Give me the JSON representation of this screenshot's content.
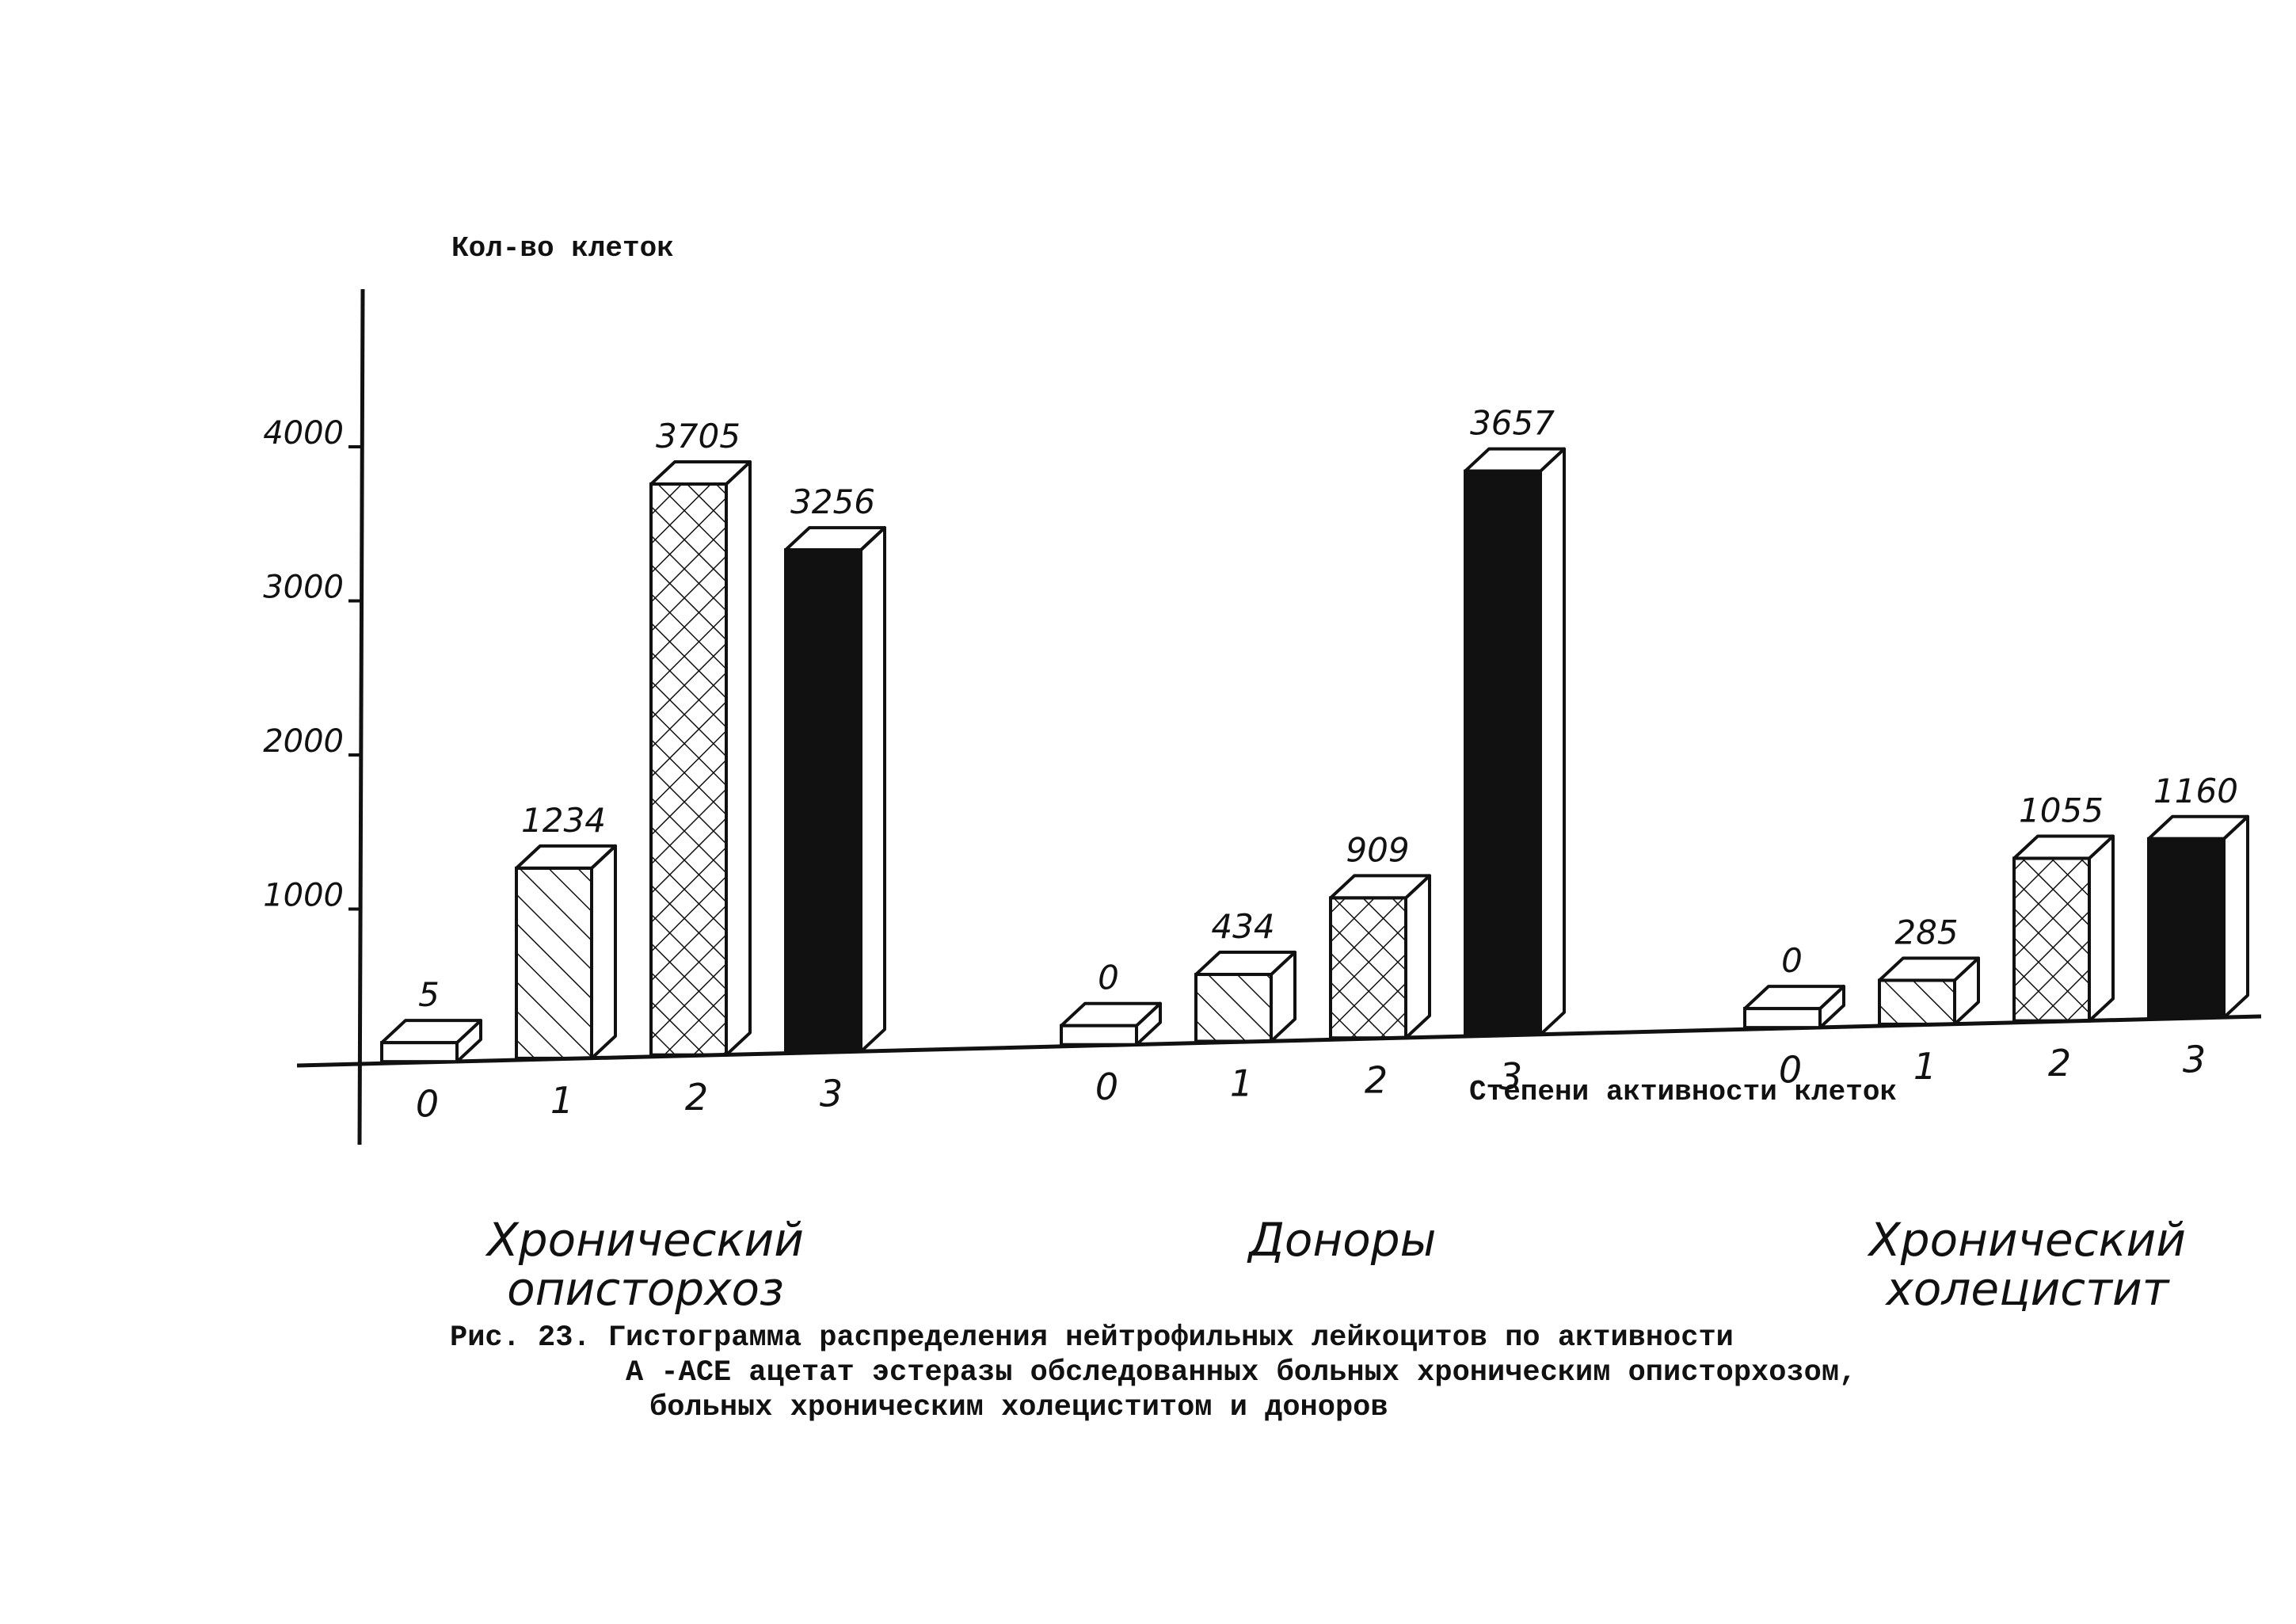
{
  "chart_data": {
    "type": "bar",
    "ylabel": "Кол-во клеток",
    "xlabel": "Степени активности клеток",
    "yticks": [
      1000,
      2000,
      3000,
      4000
    ],
    "ytick_labels": [
      "1000",
      "2000",
      "3000",
      "4000"
    ],
    "ylim": [
      0,
      5000
    ],
    "grid": false,
    "categories": [
      "0",
      "1",
      "2",
      "3"
    ],
    "groups": [
      {
        "name": "Хронический описторхоз",
        "name_lines": [
          "Хронический",
          "описторхоз"
        ],
        "values": [
          5,
          1234,
          3705,
          3256
        ],
        "value_labels": [
          "5",
          "1234",
          "3705",
          "3256"
        ]
      },
      {
        "name": "Доноры",
        "name_lines": [
          "Доноры"
        ],
        "values": [
          0,
          434,
          909,
          3657
        ],
        "value_labels": [
          "0",
          "434",
          "909",
          "3657"
        ]
      },
      {
        "name": "Хронический холецистит",
        "name_lines": [
          "Хронический",
          "холецистит"
        ],
        "values": [
          0,
          285,
          1055,
          1160
        ],
        "value_labels": [
          "0",
          "285",
          "1055",
          "1160"
        ]
      }
    ],
    "fill_by_category": [
      "empty",
      "hatched",
      "crosshatched",
      "solid"
    ]
  },
  "caption": {
    "line1": "Рис. 23. Гистограмма распределения нейтрофильных лейкоцитов по активности",
    "line2": "А -АСЕ ацетат эстеразы обследованных больных хроническим описторхозом,",
    "line3": "больных хроническим холециститом и доноров"
  },
  "colors": {
    "ink": "#111111",
    "paper": "#ffffff"
  }
}
